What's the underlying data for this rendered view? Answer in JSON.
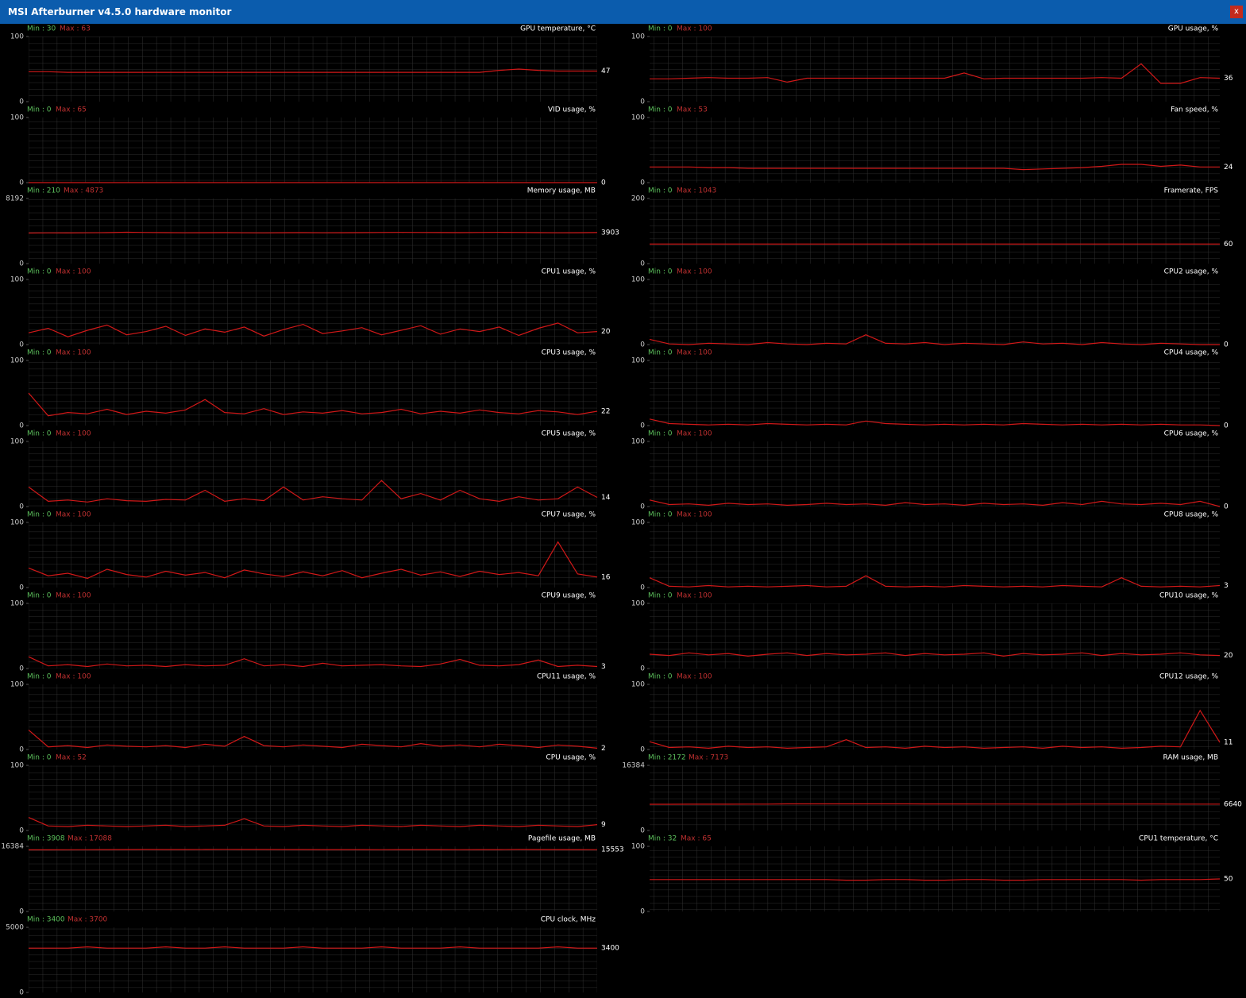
{
  "window": {
    "title": "MSI Afterburner v4.5.0 hardware monitor",
    "close": "x"
  },
  "chart_data": [
    {
      "type": "line",
      "title": "GPU temperature, °C",
      "min_label": "Min : 30",
      "max_label": "Max : 63",
      "ylim": [
        0,
        100
      ],
      "yticks": [
        0,
        100
      ],
      "series": [
        {
          "color": "#d01818",
          "values": [
            46,
            46,
            45,
            45,
            45,
            45,
            45,
            45,
            45,
            45,
            45,
            45,
            45,
            45,
            45,
            45,
            45,
            45,
            45,
            45,
            45,
            45,
            45,
            45,
            48,
            50,
            48,
            47,
            47,
            47
          ]
        }
      ]
    },
    {
      "type": "line",
      "title": "VID usage, %",
      "min_label": "Min : 0",
      "max_label": "Max : 65",
      "ylim": [
        0,
        100
      ],
      "yticks": [
        0,
        100
      ],
      "series": [
        {
          "color": "#d01818",
          "values": [
            0,
            0,
            0,
            0,
            0,
            0,
            0,
            0,
            0,
            0,
            0,
            0,
            0,
            0,
            0,
            0,
            0,
            0,
            0,
            0,
            0,
            0,
            0,
            0,
            0,
            0,
            0,
            0,
            0,
            0
          ]
        }
      ]
    },
    {
      "type": "line",
      "title": "Memory usage, MB",
      "min_label": "Min : 210",
      "max_label": "Max : 4873",
      "ylim": [
        0,
        8192
      ],
      "yticks": [
        0,
        8192
      ],
      "series": [
        {
          "color": "#d01818",
          "values": [
            3850,
            3870,
            3860,
            3880,
            3900,
            3950,
            3920,
            3900,
            3880,
            3890,
            3900,
            3880,
            3870,
            3890,
            3900,
            3880,
            3890,
            3900,
            3920,
            3930,
            3920,
            3910,
            3900,
            3920,
            3930,
            3920,
            3900,
            3880,
            3890,
            3903
          ]
        }
      ]
    },
    {
      "type": "line",
      "title": "CPU1 usage, %",
      "min_label": "Min : 0",
      "max_label": "Max : 100",
      "ylim": [
        0,
        100
      ],
      "yticks": [
        0,
        100
      ],
      "series": [
        {
          "color": "#d01818",
          "values": [
            18,
            25,
            12,
            22,
            30,
            15,
            20,
            28,
            14,
            24,
            19,
            27,
            13,
            23,
            31,
            17,
            21,
            26,
            15,
            22,
            29,
            16,
            24,
            20,
            27,
            14,
            25,
            33,
            18,
            20
          ]
        }
      ]
    },
    {
      "type": "line",
      "title": "CPU3 usage, %",
      "min_label": "Min : 0",
      "max_label": "Max : 100",
      "ylim": [
        0,
        100
      ],
      "yticks": [
        0,
        100
      ],
      "series": [
        {
          "color": "#d01818",
          "values": [
            50,
            15,
            20,
            18,
            25,
            17,
            22,
            19,
            24,
            40,
            20,
            18,
            26,
            17,
            21,
            19,
            23,
            18,
            20,
            25,
            18,
            22,
            19,
            24,
            20,
            18,
            23,
            21,
            17,
            22
          ]
        }
      ]
    },
    {
      "type": "line",
      "title": "CPU5 usage, %",
      "min_label": "Min : 0",
      "max_label": "Max : 100",
      "ylim": [
        0,
        100
      ],
      "yticks": [
        0,
        100
      ],
      "series": [
        {
          "color": "#d01818",
          "values": [
            30,
            8,
            10,
            7,
            12,
            9,
            8,
            11,
            10,
            25,
            8,
            12,
            9,
            30,
            10,
            15,
            12,
            10,
            40,
            12,
            20,
            10,
            25,
            12,
            8,
            15,
            10,
            12,
            30,
            14
          ]
        }
      ]
    },
    {
      "type": "line",
      "title": "CPU7 usage, %",
      "min_label": "Min : 0",
      "max_label": "Max : 100",
      "ylim": [
        0,
        100
      ],
      "yticks": [
        0,
        100
      ],
      "series": [
        {
          "color": "#d01818",
          "values": [
            30,
            18,
            22,
            14,
            28,
            20,
            16,
            25,
            19,
            23,
            15,
            27,
            21,
            17,
            24,
            18,
            26,
            15,
            22,
            28,
            19,
            24,
            17,
            25,
            20,
            23,
            18,
            70,
            21,
            16
          ]
        }
      ]
    },
    {
      "type": "line",
      "title": "CPU9 usage, %",
      "min_label": "Min : 0",
      "max_label": "Max : 100",
      "ylim": [
        0,
        100
      ],
      "yticks": [
        0,
        100
      ],
      "series": [
        {
          "color": "#d01818",
          "values": [
            18,
            4,
            6,
            3,
            7,
            4,
            5,
            3,
            6,
            4,
            5,
            15,
            4,
            6,
            3,
            8,
            4,
            5,
            6,
            4,
            3,
            7,
            14,
            5,
            4,
            6,
            13,
            3,
            5,
            3
          ]
        }
      ]
    },
    {
      "type": "line",
      "title": "CPU11 usage, %",
      "min_label": "Min : 0",
      "max_label": "Max : 100",
      "ylim": [
        0,
        100
      ],
      "yticks": [
        0,
        100
      ],
      "series": [
        {
          "color": "#d01818",
          "values": [
            30,
            4,
            6,
            3,
            7,
            5,
            4,
            6,
            3,
            8,
            5,
            20,
            6,
            4,
            7,
            5,
            3,
            8,
            6,
            4,
            9,
            5,
            7,
            4,
            8,
            6,
            3,
            7,
            5,
            2
          ]
        }
      ]
    },
    {
      "type": "line",
      "title": "CPU usage, %",
      "min_label": "Min : 0",
      "max_label": "Max : 52",
      "ylim": [
        0,
        100
      ],
      "yticks": [
        0,
        100
      ],
      "series": [
        {
          "color": "#d01818",
          "values": [
            20,
            7,
            6,
            8,
            7,
            6,
            7,
            8,
            6,
            7,
            8,
            18,
            7,
            6,
            8,
            7,
            6,
            8,
            7,
            6,
            8,
            7,
            6,
            8,
            7,
            6,
            8,
            7,
            6,
            9
          ]
        }
      ]
    },
    {
      "type": "line",
      "title": "Pagefile usage, MB",
      "min_label": "Min : 3908",
      "max_label": "Max : 17088",
      "ylim": [
        0,
        16384
      ],
      "yticks": [
        0,
        16384
      ],
      "series": [
        {
          "color": "#d01818",
          "values": [
            15500,
            15510,
            15520,
            15540,
            15560,
            15580,
            15600,
            15590,
            15580,
            15600,
            15620,
            15610,
            15600,
            15590,
            15580,
            15570,
            15560,
            15560,
            15550,
            15560,
            15570,
            15560,
            15550,
            15560,
            15570,
            15600,
            15590,
            15570,
            15560,
            15553
          ]
        }
      ]
    },
    {
      "type": "line",
      "title": "CPU clock, MHz",
      "min_label": "Min : 3400",
      "max_label": "Max : 3700",
      "ylim": [
        0,
        5000
      ],
      "yticks": [
        0,
        5000
      ],
      "series": [
        {
          "color": "#d01818",
          "values": [
            3400,
            3400,
            3400,
            3500,
            3400,
            3400,
            3400,
            3500,
            3400,
            3400,
            3500,
            3400,
            3400,
            3400,
            3500,
            3400,
            3400,
            3400,
            3500,
            3400,
            3400,
            3400,
            3500,
            3400,
            3400,
            3400,
            3400,
            3500,
            3400,
            3400
          ]
        }
      ]
    },
    {
      "type": "line",
      "title": "GPU usage, %",
      "min_label": "Min : 0",
      "max_label": "Max : 100",
      "ylim": [
        0,
        100
      ],
      "yticks": [
        0,
        100
      ],
      "series": [
        {
          "color": "#d01818",
          "values": [
            35,
            35,
            36,
            37,
            36,
            36,
            37,
            30,
            36,
            36,
            36,
            36,
            36,
            36,
            36,
            36,
            44,
            35,
            36,
            36,
            36,
            36,
            36,
            37,
            36,
            58,
            28,
            28,
            37,
            36
          ]
        }
      ]
    },
    {
      "type": "line",
      "title": "Fan speed, %",
      "min_label": "Min : 0",
      "max_label": "Max : 53",
      "ylim": [
        0,
        100
      ],
      "yticks": [
        0,
        100
      ],
      "series": [
        {
          "color": "#d01818",
          "values": [
            24,
            24,
            24,
            23,
            23,
            22,
            22,
            22,
            22,
            22,
            22,
            22,
            22,
            22,
            22,
            22,
            22,
            22,
            22,
            20,
            21,
            22,
            23,
            25,
            28,
            28,
            25,
            27,
            24,
            24
          ]
        }
      ]
    },
    {
      "type": "line",
      "title": "Framerate, FPS",
      "min_label": "Min : 0",
      "max_label": "Max : 1043",
      "ylim": [
        0,
        200
      ],
      "yticks": [
        0,
        200
      ],
      "series": [
        {
          "color": "#d01818",
          "values": [
            60,
            60,
            60,
            60,
            60,
            60,
            60,
            60,
            60,
            60,
            60,
            60,
            60,
            60,
            60,
            60,
            60,
            60,
            60,
            60,
            60,
            60,
            60,
            60,
            60,
            60,
            60,
            60,
            60,
            60
          ]
        }
      ]
    },
    {
      "type": "line",
      "title": "CPU2 usage, %",
      "min_label": "Min : 0",
      "max_label": "Max : 100",
      "ylim": [
        0,
        100
      ],
      "yticks": [
        0,
        100
      ],
      "series": [
        {
          "color": "#d01818",
          "values": [
            8,
            1,
            0,
            2,
            1,
            0,
            3,
            1,
            0,
            2,
            1,
            15,
            2,
            1,
            3,
            0,
            2,
            1,
            0,
            4,
            1,
            2,
            0,
            3,
            1,
            0,
            2,
            1,
            0,
            0
          ]
        }
      ]
    },
    {
      "type": "line",
      "title": "CPU4 usage, %",
      "min_label": "Min : 0",
      "max_label": "Max : 100",
      "ylim": [
        0,
        100
      ],
      "yticks": [
        0,
        100
      ],
      "series": [
        {
          "color": "#d01818",
          "values": [
            10,
            3,
            2,
            1,
            2,
            1,
            3,
            2,
            1,
            2,
            1,
            7,
            3,
            2,
            1,
            2,
            1,
            2,
            1,
            3,
            2,
            1,
            2,
            1,
            2,
            1,
            2,
            1,
            1,
            0
          ]
        }
      ]
    },
    {
      "type": "line",
      "title": "CPU6 usage, %",
      "min_label": "Min : 0",
      "max_label": "Max : 100",
      "ylim": [
        0,
        100
      ],
      "yticks": [
        0,
        100
      ],
      "series": [
        {
          "color": "#d01818",
          "values": [
            10,
            3,
            4,
            2,
            5,
            3,
            4,
            2,
            3,
            5,
            3,
            4,
            2,
            6,
            3,
            4,
            2,
            5,
            3,
            4,
            2,
            6,
            3,
            8,
            4,
            3,
            5,
            3,
            8,
            0
          ]
        }
      ]
    },
    {
      "type": "line",
      "title": "CPU8 usage, %",
      "min_label": "Min : 0",
      "max_label": "Max : 100",
      "ylim": [
        0,
        100
      ],
      "yticks": [
        0,
        100
      ],
      "series": [
        {
          "color": "#d01818",
          "values": [
            15,
            2,
            1,
            3,
            1,
            2,
            1,
            2,
            3,
            1,
            2,
            18,
            2,
            1,
            2,
            1,
            3,
            2,
            1,
            2,
            1,
            3,
            2,
            1,
            15,
            2,
            1,
            2,
            1,
            3
          ]
        }
      ]
    },
    {
      "type": "line",
      "title": "CPU10 usage, %",
      "min_label": "Min : 0",
      "max_label": "Max : 100",
      "ylim": [
        0,
        100
      ],
      "yticks": [
        0,
        100
      ],
      "series": [
        {
          "color": "#d01818",
          "values": [
            22,
            20,
            24,
            21,
            23,
            19,
            22,
            24,
            20,
            23,
            21,
            22,
            24,
            20,
            23,
            21,
            22,
            24,
            19,
            23,
            21,
            22,
            24,
            20,
            23,
            21,
            22,
            24,
            21,
            20
          ]
        }
      ]
    },
    {
      "type": "line",
      "title": "CPU12 usage, %",
      "min_label": "Min : 0",
      "max_label": "Max : 100",
      "ylim": [
        0,
        100
      ],
      "yticks": [
        0,
        100
      ],
      "series": [
        {
          "color": "#d01818",
          "values": [
            12,
            3,
            4,
            2,
            5,
            3,
            4,
            2,
            3,
            4,
            15,
            3,
            4,
            2,
            5,
            3,
            4,
            2,
            3,
            4,
            2,
            5,
            3,
            4,
            2,
            3,
            5,
            4,
            60,
            11
          ]
        }
      ]
    },
    {
      "type": "line",
      "title": "RAM usage, MB",
      "min_label": "Min : 2172",
      "max_label": "Max : 7173",
      "ylim": [
        0,
        16384
      ],
      "yticks": [
        0,
        16384
      ],
      "series": [
        {
          "color": "#d01818",
          "values": [
            6600,
            6600,
            6610,
            6620,
            6620,
            6630,
            6640,
            6700,
            6700,
            6700,
            6700,
            6700,
            6690,
            6690,
            6680,
            6680,
            6670,
            6660,
            6650,
            6650,
            6640,
            6640,
            6650,
            6660,
            6660,
            6650,
            6650,
            6640,
            6640,
            6640
          ]
        }
      ]
    },
    {
      "type": "line",
      "title": "CPU1 temperature, °C",
      "min_label": "Min : 32",
      "max_label": "Max : 65",
      "ylim": [
        0,
        100
      ],
      "yticks": [
        0,
        100
      ],
      "series": [
        {
          "color": "#d01818",
          "values": [
            49,
            49,
            49,
            49,
            49,
            49,
            49,
            49,
            49,
            49,
            48,
            48,
            49,
            49,
            48,
            48,
            49,
            49,
            48,
            48,
            49,
            49,
            49,
            49,
            49,
            48,
            49,
            49,
            49,
            50
          ]
        }
      ]
    }
  ]
}
